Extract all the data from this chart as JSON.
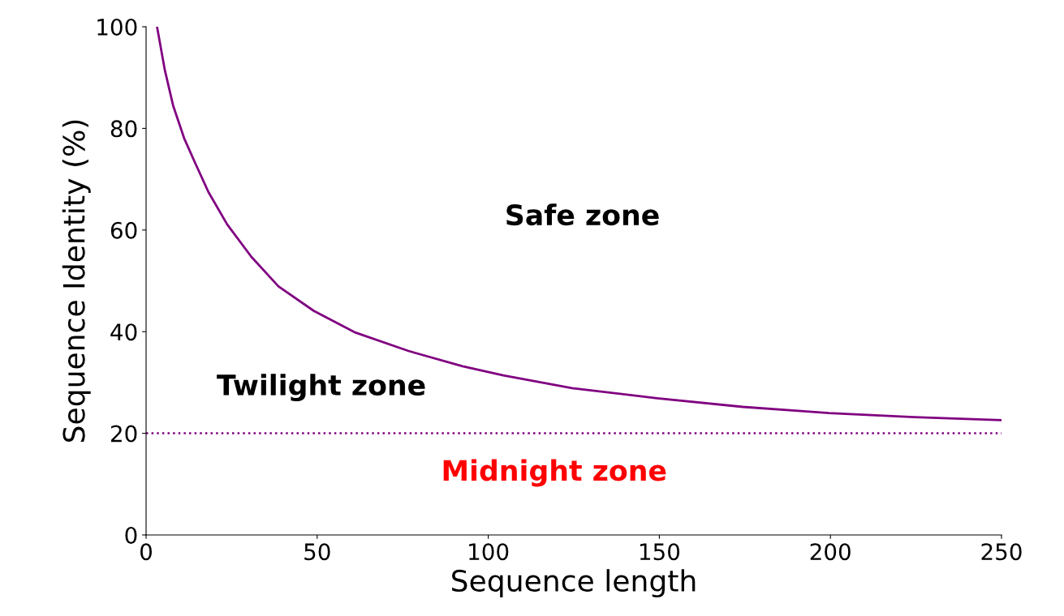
{
  "chart_data": {
    "type": "line",
    "xlabel": "Sequence length",
    "ylabel": "Sequence Identity (%)",
    "x": [
      3.2,
      5.5,
      7.9,
      11.1,
      14.2,
      18.2,
      23.7,
      30.8,
      38.7,
      49.0,
      60.9,
      76.7,
      92.5,
      104.4,
      124.5,
      149.4,
      174.4,
      199.5,
      224.4,
      249.9
    ],
    "series": [
      {
        "color": "#800080",
        "values": [
          100,
          91.4,
          84.5,
          78.1,
          73.4,
          67.5,
          61.1,
          54.7,
          48.9,
          44.1,
          39.9,
          36.2,
          33.2,
          31.4,
          28.9,
          26.9,
          25.2,
          24.0,
          23.2,
          22.6
        ]
      }
    ],
    "xlim": [
      0,
      250
    ],
    "xticks": [
      0,
      50,
      100,
      150,
      200,
      250
    ],
    "ylim": [
      0,
      100
    ],
    "yticks": [
      0,
      20,
      40,
      60,
      80,
      100
    ],
    "ref_lines": [
      {
        "axis": "y",
        "value": 20,
        "color": "#800080",
        "line_style": "dotted"
      }
    ],
    "annotations": [
      "Safe zone",
      "Twilight zone",
      "Midnight zone"
    ],
    "grid": false,
    "legend": false,
    "marker": "none",
    "line_style": "solid"
  }
}
